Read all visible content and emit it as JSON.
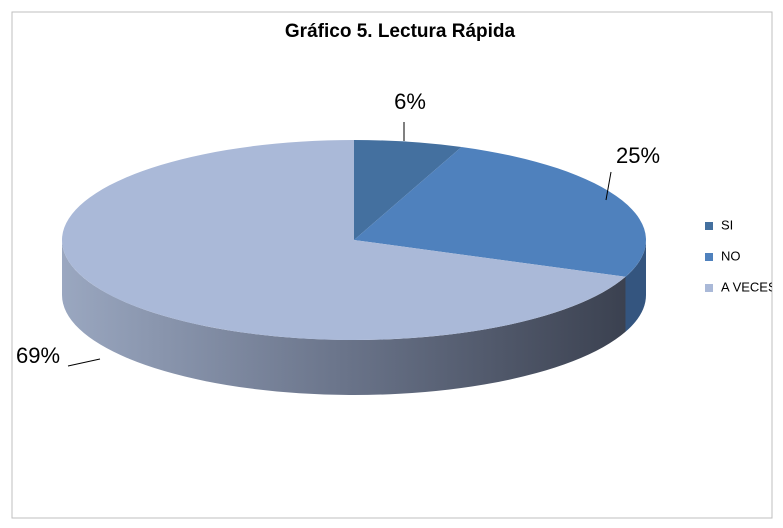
{
  "chart_data": {
    "type": "pie3d",
    "title": "Gráfico 5. Lectura Rápida",
    "categories": [
      "SI",
      "NO",
      "A VECES"
    ],
    "values": [
      6,
      25,
      69
    ],
    "value_labels": [
      "6%",
      "25%",
      "69%"
    ],
    "colors": [
      "#44709f",
      "#4f81bd",
      "#aab9d8"
    ],
    "legend": "right"
  }
}
